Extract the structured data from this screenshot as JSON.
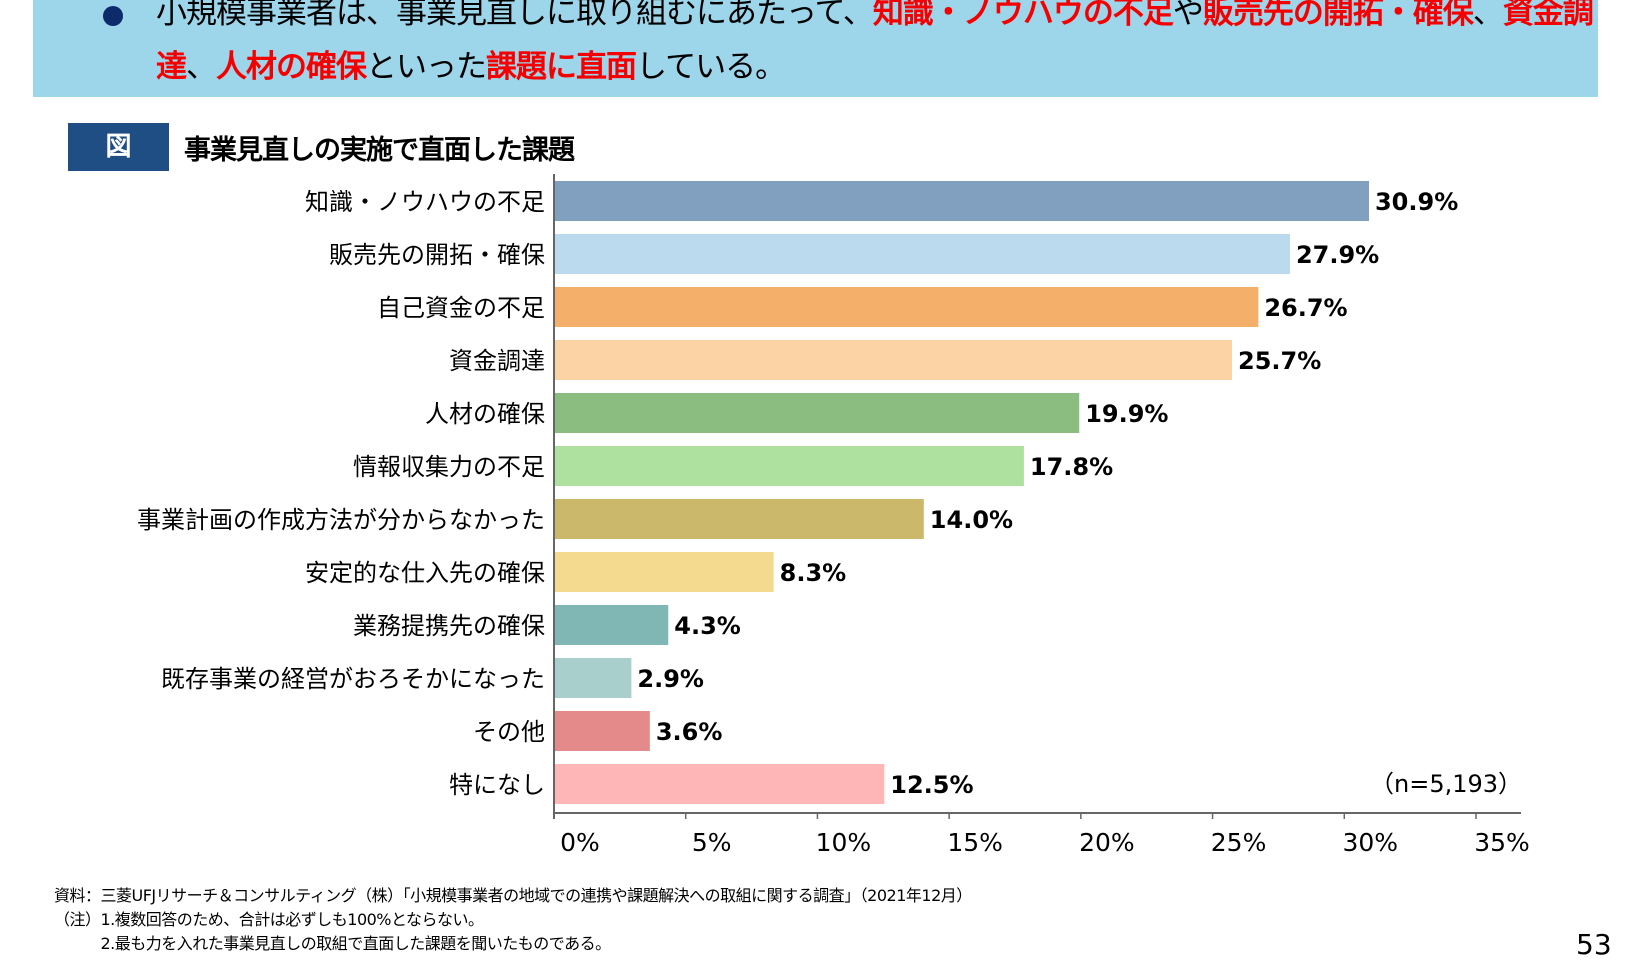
{
  "banner": {
    "segments": [
      {
        "text": "小規模事業者は、事業見直しに取り組むにあたって、",
        "highlight": false
      },
      {
        "text": "知識・ノウハウの不足",
        "highlight": true
      },
      {
        "text": "や",
        "highlight": false
      },
      {
        "text": "販売先の開拓・確保",
        "highlight": true
      },
      {
        "text": "、",
        "highlight": false
      },
      {
        "text": "資金調達",
        "highlight": true
      },
      {
        "text": "、",
        "highlight": false
      },
      {
        "text": "人材の確保",
        "highlight": true
      },
      {
        "text": "といった",
        "highlight": false
      },
      {
        "text": "課題に直面",
        "highlight": true
      },
      {
        "text": "している。",
        "highlight": false
      }
    ],
    "background": "#9dd5ea",
    "highlight_color": "#f40000"
  },
  "figure": {
    "label": "図",
    "title": "事業見直しの実施で直面した課題"
  },
  "chart_data": {
    "type": "bar",
    "orientation": "horizontal",
    "categories": [
      "知識・ノウハウの不足",
      "販売先の開拓・確保",
      "自己資金の不足",
      "資金調達",
      "人材の確保",
      "情報収集力の不足",
      "事業計画の作成方法が分からなかった",
      "安定的な仕入先の確保",
      "業務提携先の確保",
      "既存事業の経営がおろそかになった",
      "その他",
      "特になし"
    ],
    "values": [
      30.9,
      27.9,
      26.7,
      25.7,
      19.9,
      17.8,
      14.0,
      8.3,
      4.3,
      2.9,
      3.6,
      12.5
    ],
    "data_labels": [
      "30.9%",
      "27.9%",
      "26.7%",
      "25.7%",
      "19.9%",
      "17.8%",
      "14.0%",
      "8.3%",
      "4.3%",
      "2.9%",
      "3.6%",
      "12.5%"
    ],
    "colors": [
      "#819fbf",
      "#bcdaee",
      "#f4b06b",
      "#fcd3a4",
      "#8bbd80",
      "#aee0a0",
      "#cbb86a",
      "#f3da8f",
      "#80b6b4",
      "#a9cfcc",
      "#e58a8a",
      "#ffb6b6"
    ],
    "xlim": [
      0,
      35
    ],
    "xticks": [
      "0%",
      "5%",
      "10%",
      "15%",
      "20%",
      "25%",
      "30%",
      "35%"
    ],
    "grid": false,
    "annotation": "（n=5,193）"
  },
  "footnotes": [
    "資料：三菱UFJリサーチ＆コンサルティング（株）「小規模事業者の地域での連携や課題解決への取組に関する調査」（2021年12月）",
    "（注）1.複数回答のため、合計は必ずしも100%とならない。",
    "　　　2.最も力を入れた事業見直しの取組で直面した課題を聞いたものである。"
  ],
  "page_number": "53"
}
